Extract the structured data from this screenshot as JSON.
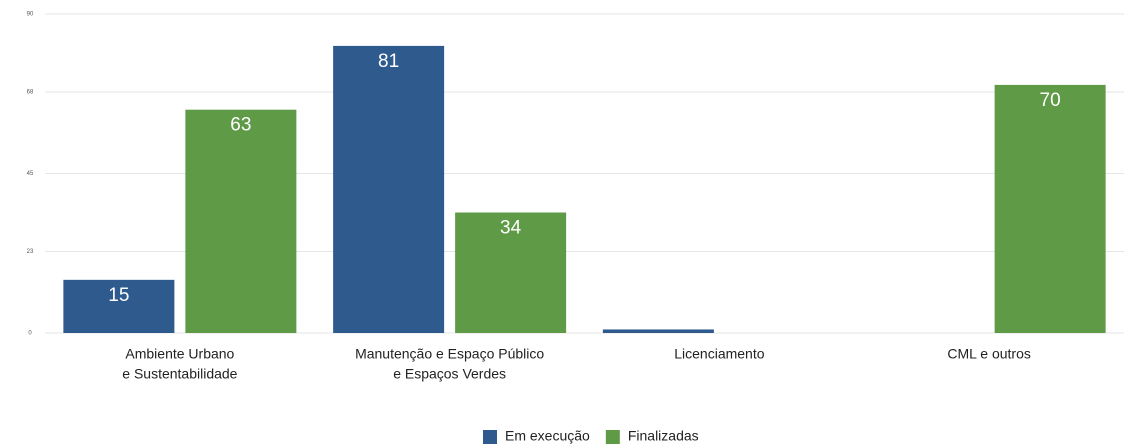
{
  "chart_data": {
    "type": "bar",
    "categories": [
      [
        "Ambiente Urbano",
        "e Sustentabilidade"
      ],
      [
        "Manutenção e Espaço Público",
        "e Espaços Verdes"
      ],
      [
        "Licenciamento"
      ],
      [
        "CML e outros"
      ]
    ],
    "series": [
      {
        "name": "Em execução",
        "color": "#2e5a8e",
        "values": [
          15,
          81,
          1,
          0
        ],
        "value_labels": [
          "15",
          "81",
          null,
          null
        ]
      },
      {
        "name": "Finalizadas",
        "color": "#5f9a47",
        "values": [
          63,
          34,
          0,
          70
        ],
        "value_labels": [
          "63",
          "34",
          null,
          "70"
        ]
      }
    ],
    "ylim": [
      0,
      90
    ],
    "yticks": [
      0,
      23,
      45,
      68,
      90
    ],
    "grid": true,
    "legend": "bottom"
  }
}
